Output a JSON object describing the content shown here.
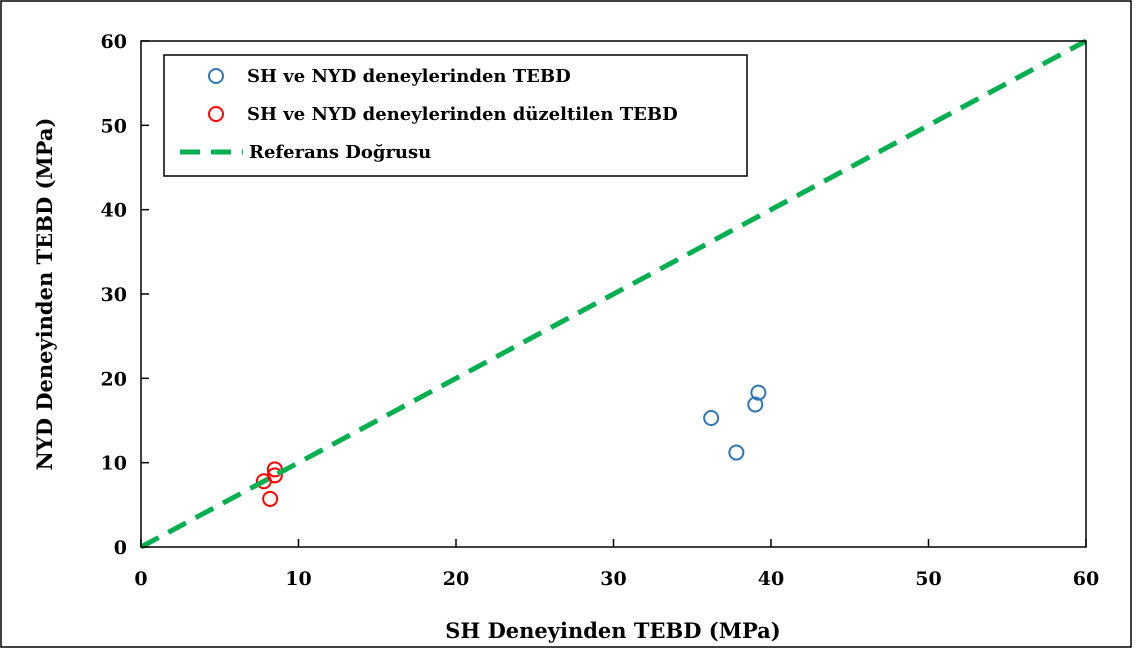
{
  "chart_data": {
    "type": "scatter",
    "title": "",
    "xlabel": "SH Deneyinden TEBD (MPa)",
    "ylabel": "NYD Deneyinden TEBD (MPa)",
    "xlim": [
      0,
      60
    ],
    "ylim": [
      0,
      60
    ],
    "xticks": [
      "0",
      "10",
      "20",
      "30",
      "40",
      "50",
      "60"
    ],
    "yticks": [
      "0",
      "10",
      "20",
      "30",
      "40",
      "50",
      "60"
    ],
    "grid": false,
    "legend_position": "top-left",
    "series": [
      {
        "name": "SH ve NYD deneylerinden TEBD",
        "marker": "open-circle",
        "color": "#2E75B6",
        "points": [
          {
            "x": 36.2,
            "y": 15.3
          },
          {
            "x": 37.8,
            "y": 11.2
          },
          {
            "x": 39.0,
            "y": 16.9
          },
          {
            "x": 39.2,
            "y": 18.3
          }
        ]
      },
      {
        "name": "SH ve NYD deneylerinden düzeltilen TEBD",
        "marker": "open-circle",
        "color": "#FF0000",
        "points": [
          {
            "x": 7.8,
            "y": 7.8
          },
          {
            "x": 8.2,
            "y": 5.7
          },
          {
            "x": 8.5,
            "y": 8.5
          },
          {
            "x": 8.5,
            "y": 9.2
          }
        ]
      },
      {
        "name": "Referans Doğrusu",
        "marker": "dashed-line",
        "color": "#00B050",
        "points": [
          {
            "x": 0,
            "y": 0
          },
          {
            "x": 60,
            "y": 60
          }
        ]
      }
    ]
  }
}
